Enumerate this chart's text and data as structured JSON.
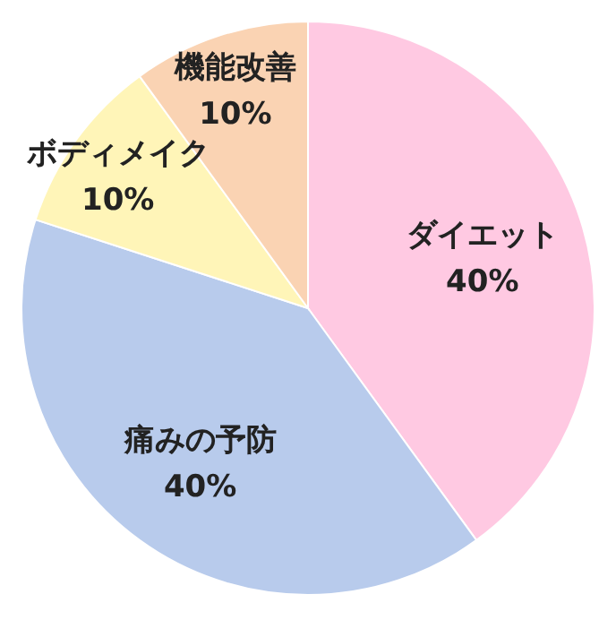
{
  "chart_data": {
    "type": "pie",
    "categories": [
      "ダイエット",
      "痛みの予防",
      "ボディメイク",
      "機能改善"
    ],
    "values": [
      40,
      40,
      10,
      10
    ],
    "colors": [
      "#ffc9e2",
      "#b8cbec",
      "#fff5b8",
      "#fad3b3"
    ],
    "value_labels": [
      "40%",
      "40%",
      "10%",
      "10%"
    ]
  }
}
